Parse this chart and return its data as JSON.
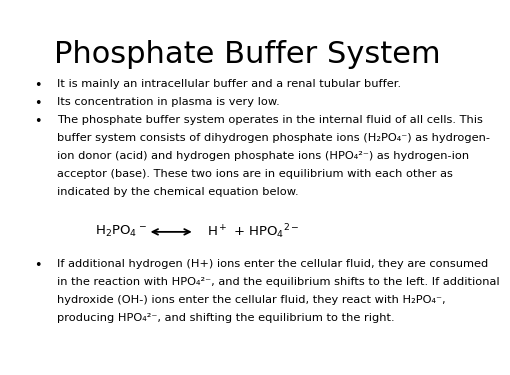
{
  "title": "Phosphate Buffer System",
  "background_color": "#ffffff",
  "title_fontsize": 22,
  "bullet_fontsize": 8.2,
  "equation_fontsize": 9.5,
  "text_color": "#000000",
  "bullet1": "It is mainly an intracellular buffer and a renal tubular buffer.",
  "bullet2": "Its concentration in plasma is very low.",
  "bullet3_line1": "The phosphate buffer system operates in the internal fluid of all cells. This",
  "bullet3_line2": "buffer system consists of dihydrogen phosphate ions (H₂PO₄⁻) as hydrogen-",
  "bullet3_line3": "ion donor (acid) and hydrogen phosphate ions (HPO₄²⁻) as hydrogen-ion",
  "bullet3_line4": "acceptor (base). These two ions are in equilibrium with each other as",
  "bullet3_line5": "indicated by the chemical equation below.",
  "bullet4_line1": "If additional hydrogen (H+) ions enter the cellular fluid, they are consumed",
  "bullet4_line2": "in the reaction with HPO₄²⁻, and the equilibrium shifts to the left. If additional",
  "bullet4_line3": "hydroxide (OH-) ions enter the cellular fluid, they react with H₂PO₄⁻,",
  "bullet4_line4": "producing HPO₄²⁻, and shifting the equilibrium to the right.",
  "lmargin": 0.03,
  "bullet_indent": 0.05,
  "text_indent": 0.1
}
